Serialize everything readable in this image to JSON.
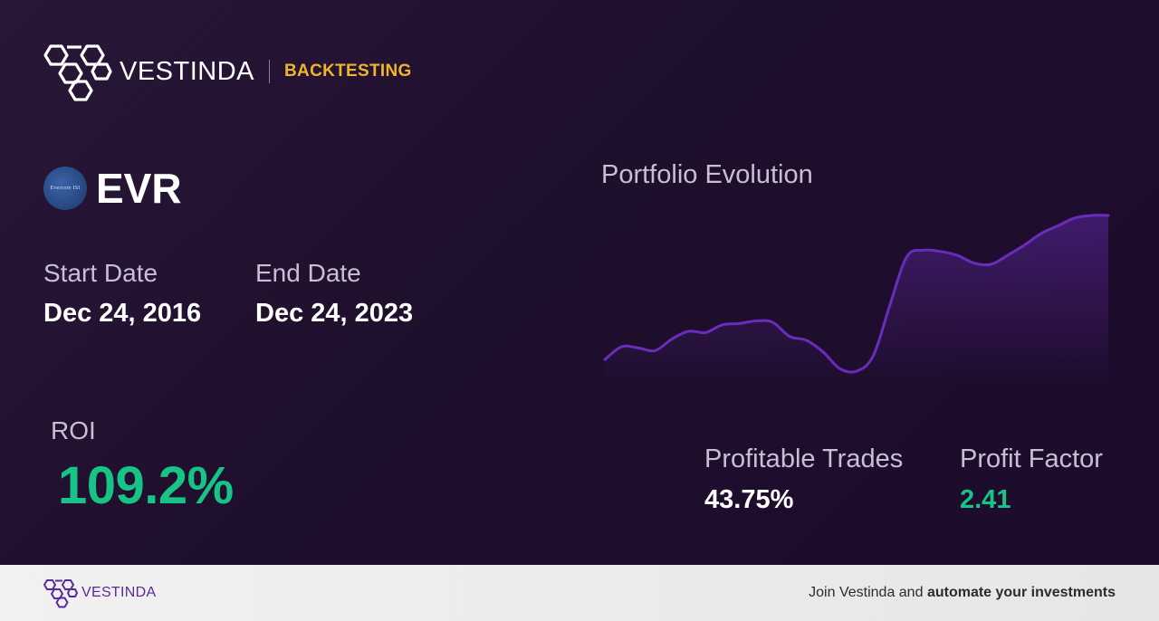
{
  "header": {
    "brand": "VESTINDA",
    "section": "BACKTESTING"
  },
  "ticker": {
    "symbol": "EVR",
    "logo_text": "Evercore ISI"
  },
  "dates": {
    "start_label": "Start Date",
    "start_value": "Dec 24, 2016",
    "end_label": "End Date",
    "end_value": "Dec 24, 2023"
  },
  "roi": {
    "label": "ROI",
    "value": "109.2%"
  },
  "chart": {
    "title": "Portfolio Evolution"
  },
  "chart_data": {
    "type": "area",
    "title": "Portfolio Evolution",
    "x": [
      0,
      1,
      2,
      3,
      4,
      5,
      6,
      7,
      8,
      9,
      10,
      11,
      12,
      13,
      14,
      15,
      16,
      17,
      18,
      19,
      20,
      21,
      22,
      23,
      24,
      25,
      26,
      27,
      28,
      29,
      30
    ],
    "values": [
      0.12,
      0.22,
      0.21,
      0.19,
      0.28,
      0.34,
      0.33,
      0.39,
      0.4,
      0.42,
      0.41,
      0.3,
      0.27,
      0.18,
      0.05,
      0.03,
      0.15,
      0.55,
      0.92,
      0.97,
      0.96,
      0.93,
      0.87,
      0.86,
      0.93,
      1.01,
      1.1,
      1.16,
      1.22,
      1.24,
      1.24
    ],
    "xlabel": "",
    "ylabel": "",
    "grid": false,
    "legend": "none",
    "line_color": "#6a2dbb"
  },
  "metrics": {
    "profitable_trades": {
      "label": "Profitable Trades",
      "value": "43.75%",
      "color": "#ffffff"
    },
    "profit_factor": {
      "label": "Profit Factor",
      "value": "2.41",
      "color": "#17c386"
    }
  },
  "footer": {
    "brand": "VESTINDA",
    "cta_prefix": "Join Vestinda and",
    "cta_bold": "automate your investments"
  }
}
